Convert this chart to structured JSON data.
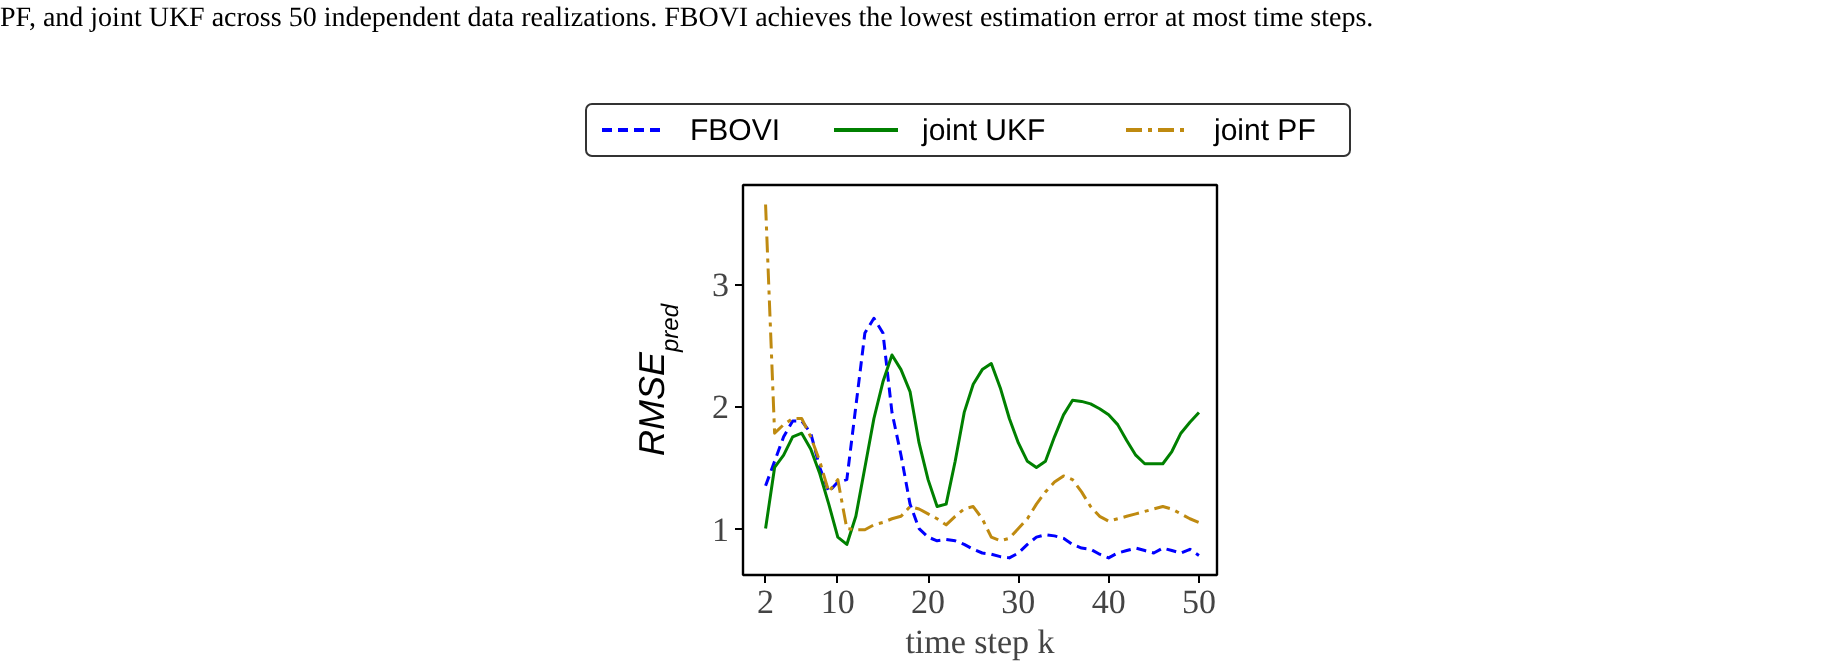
{
  "chart_data": {
    "type": "line",
    "annotations": [
      "PF, and joint UKF across 50 independent data realizations. FBOVI achieves the lowest estimation error at most time steps."
    ],
    "xlabel": "time step k",
    "ylabel": "RMSE$_{pred}$",
    "x": [
      2,
      3,
      4,
      5,
      6,
      7,
      8,
      9,
      10,
      11,
      12,
      13,
      14,
      15,
      16,
      17,
      18,
      19,
      20,
      21,
      22,
      23,
      24,
      25,
      26,
      27,
      28,
      29,
      30,
      31,
      32,
      33,
      34,
      35,
      36,
      37,
      38,
      39,
      40,
      41,
      42,
      43,
      44,
      45,
      46,
      47,
      48,
      49,
      50
    ],
    "series": [
      {
        "name": "FBOVI",
        "color": "#0000ff",
        "line_style": "dashed",
        "values": [
          1.35,
          1.55,
          1.75,
          1.88,
          1.88,
          1.78,
          1.5,
          1.3,
          1.38,
          1.4,
          2.0,
          2.6,
          2.72,
          2.6,
          1.95,
          1.6,
          1.2,
          1.0,
          0.93,
          0.9,
          0.91,
          0.9,
          0.87,
          0.83,
          0.8,
          0.79,
          0.77,
          0.76,
          0.8,
          0.87,
          0.93,
          0.95,
          0.94,
          0.92,
          0.87,
          0.84,
          0.83,
          0.79,
          0.76,
          0.8,
          0.82,
          0.84,
          0.82,
          0.8,
          0.84,
          0.82,
          0.8,
          0.83,
          0.78
        ]
      },
      {
        "name": "joint UKF",
        "color": "#008000",
        "line_style": "solid",
        "values": [
          1.0,
          1.5,
          1.6,
          1.75,
          1.78,
          1.65,
          1.45,
          1.2,
          0.93,
          0.87,
          1.1,
          1.5,
          1.9,
          2.2,
          2.42,
          2.3,
          2.12,
          1.7,
          1.4,
          1.18,
          1.2,
          1.55,
          1.95,
          2.18,
          2.3,
          2.35,
          2.15,
          1.9,
          1.7,
          1.55,
          1.5,
          1.55,
          1.75,
          1.93,
          2.05,
          2.04,
          2.02,
          1.98,
          1.93,
          1.85,
          1.72,
          1.6,
          1.53,
          1.53,
          1.53,
          1.63,
          1.78,
          1.87,
          1.95
        ]
      },
      {
        "name": "joint PF",
        "color": "#bf8a10",
        "line_style": "dashdot",
        "values": [
          3.65,
          1.78,
          1.85,
          1.9,
          1.9,
          1.75,
          1.55,
          1.3,
          1.4,
          1.0,
          0.99,
          0.99,
          1.03,
          1.05,
          1.08,
          1.1,
          1.18,
          1.16,
          1.12,
          1.08,
          1.03,
          1.1,
          1.16,
          1.18,
          1.08,
          0.93,
          0.9,
          0.92,
          1.0,
          1.08,
          1.2,
          1.3,
          1.38,
          1.43,
          1.4,
          1.3,
          1.18,
          1.1,
          1.06,
          1.08,
          1.1,
          1.12,
          1.14,
          1.16,
          1.18,
          1.16,
          1.12,
          1.08,
          1.05
        ]
      }
    ],
    "xlim": [
      -0.5,
      52
    ],
    "xticks": [
      2,
      10,
      20,
      30,
      40,
      50
    ],
    "ylim": [
      0.62,
      3.81
    ],
    "yticks": [
      1,
      2,
      3
    ],
    "grid": false,
    "legend": "top"
  }
}
